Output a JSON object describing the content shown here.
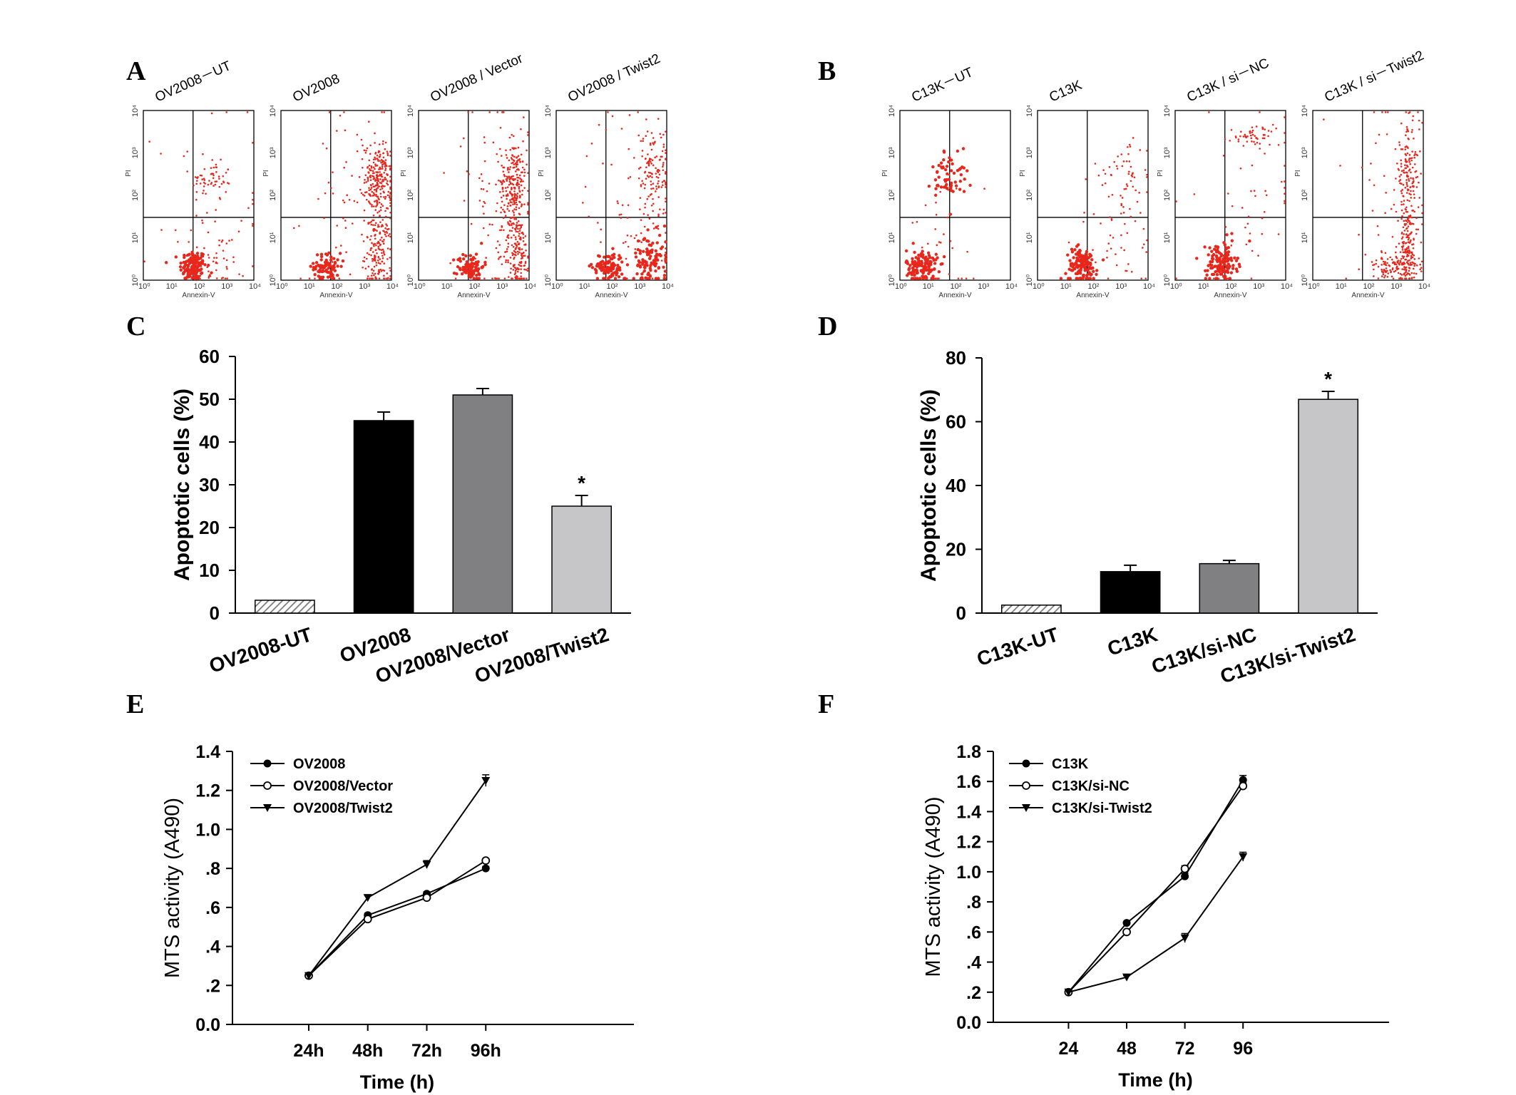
{
  "panel_labels": {
    "A": "A",
    "B": "B",
    "C": "C",
    "D": "D",
    "E": "E",
    "F": "F"
  },
  "colors": {
    "dots": "#e8271c",
    "black_bar": "#000000",
    "dark_gray_bar": "#808083",
    "light_gray_bar": "#c6c6c9",
    "hatch": "#8a8a8a"
  },
  "flow_panels": [
    {
      "group": "A",
      "x_axis_label": "Annexin-V",
      "y_axis_label": "PI",
      "tick_labels": [
        "10⁰",
        "10¹",
        "10²",
        "10³",
        "10⁴"
      ],
      "plots": [
        {
          "title": "OV2008－UT",
          "populations": [
            [
              0.45,
              0.08,
              0.06,
              0.05,
              130
            ],
            [
              0.65,
              0.12,
              0.12,
              0.08,
              40
            ],
            [
              0.62,
              0.59,
              0.09,
              0.05,
              55
            ],
            [
              0.6,
              0.4,
              0.25,
              0.35,
              45
            ]
          ]
        },
        {
          "title": "OV2008",
          "populations": [
            [
              0.42,
              0.08,
              0.06,
              0.04,
              80
            ],
            [
              0.88,
              0.16,
              0.06,
              0.12,
              160
            ],
            [
              0.88,
              0.6,
              0.06,
              0.1,
              220
            ],
            [
              0.7,
              0.45,
              0.25,
              0.3,
              90
            ]
          ]
        },
        {
          "title": "OV2008 / Vector",
          "populations": [
            [
              0.47,
              0.08,
              0.06,
              0.04,
              90
            ],
            [
              0.89,
              0.16,
              0.06,
              0.12,
              170
            ],
            [
              0.86,
              0.58,
              0.06,
              0.12,
              220
            ],
            [
              0.72,
              0.45,
              0.22,
              0.3,
              90
            ]
          ]
        },
        {
          "title": "OV2008 / Twist2",
          "populations": [
            [
              0.47,
              0.08,
              0.07,
              0.04,
              110
            ],
            [
              0.86,
              0.12,
              0.08,
              0.08,
              100
            ],
            [
              0.88,
              0.64,
              0.07,
              0.13,
              120
            ],
            [
              0.72,
              0.45,
              0.22,
              0.3,
              80
            ]
          ]
        }
      ]
    },
    {
      "group": "B",
      "x_axis_label": "Annexin-V",
      "y_axis_label": "PI",
      "tick_labels": [
        "10⁰",
        "10¹",
        "10²",
        "10³",
        "10⁴"
      ],
      "plots": [
        {
          "title": "C13K－UT",
          "populations": [
            [
              0.2,
              0.08,
              0.07,
              0.05,
              140
            ],
            [
              0.45,
              0.62,
              0.08,
              0.08,
              60
            ],
            [
              0.4,
              0.25,
              0.15,
              0.25,
              40
            ]
          ]
        },
        {
          "title": "C13K",
          "populations": [
            [
              0.4,
              0.09,
              0.07,
              0.05,
              130
            ],
            [
              0.75,
              0.3,
              0.2,
              0.2,
              50
            ],
            [
              0.8,
              0.62,
              0.12,
              0.12,
              45
            ]
          ]
        },
        {
          "title": "C13K / si－NC",
          "populations": [
            [
              0.42,
              0.1,
              0.07,
              0.06,
              140
            ],
            [
              0.72,
              0.85,
              0.12,
              0.03,
              50
            ],
            [
              0.65,
              0.4,
              0.22,
              0.3,
              50
            ]
          ]
        },
        {
          "title": "C13K / si－Twist2",
          "populations": [
            [
              0.72,
              0.08,
              0.12,
              0.04,
              100
            ],
            [
              0.86,
              0.16,
              0.05,
              0.12,
              150
            ],
            [
              0.86,
              0.6,
              0.05,
              0.15,
              160
            ],
            [
              0.7,
              0.45,
              0.2,
              0.3,
              50
            ]
          ]
        }
      ]
    }
  ],
  "chart_data": [
    {
      "type": "bar",
      "panel": "C",
      "title": "",
      "ylabel": "Apoptotic cells (%)",
      "ylim": [
        0,
        60
      ],
      "yticks": [
        0,
        10,
        20,
        30,
        40,
        50,
        60
      ],
      "categories": [
        "OV2008-UT",
        "OV2008",
        "OV2008/Vector",
        "OV2008/Twist2"
      ],
      "values": [
        3,
        45,
        51,
        25
      ],
      "errors": [
        0,
        2,
        1.5,
        2.5
      ],
      "fills": [
        "hatch",
        "black",
        "darkgray",
        "lightgray"
      ],
      "annotations": [
        {
          "category": "OV2008/Twist2",
          "text": "*"
        }
      ]
    },
    {
      "type": "bar",
      "panel": "D",
      "title": "",
      "ylabel": "Apoptotic cells (%)",
      "ylim": [
        0,
        80
      ],
      "yticks": [
        0,
        20,
        40,
        60,
        80
      ],
      "categories": [
        "C13K-UT",
        "C13K",
        "C13K/si-NC",
        "C13K/si-Twist2"
      ],
      "values": [
        2.5,
        13,
        15.5,
        67
      ],
      "errors": [
        0,
        2,
        1,
        2.5
      ],
      "fills": [
        "hatch",
        "black",
        "darkgray",
        "lightgray"
      ],
      "annotations": [
        {
          "category": "C13K/si-Twist2",
          "text": "*"
        }
      ]
    },
    {
      "type": "line",
      "panel": "E",
      "title": "",
      "xlabel": "Time (h)",
      "ylabel": "MTS activity (A490)",
      "ylim": [
        0,
        1.4
      ],
      "yticks": [
        "0.0",
        ".2",
        ".4",
        ".6",
        ".8",
        "1.0",
        "1.2",
        "1.4"
      ],
      "categories": [
        "24h",
        "48h",
        "72h",
        "96h"
      ],
      "series": [
        {
          "name": "OV2008",
          "marker": "filled-circle",
          "values": [
            0.25,
            0.56,
            0.67,
            0.8
          ],
          "errors": [
            0,
            0.01,
            0.01,
            0.01
          ]
        },
        {
          "name": "OV2008/Vector",
          "marker": "open-circle",
          "values": [
            0.25,
            0.54,
            0.65,
            0.84
          ],
          "errors": [
            0,
            0.01,
            0.01,
            0.01
          ]
        },
        {
          "name": "OV2008/Twist2",
          "marker": "filled-triangle-down",
          "values": [
            0.25,
            0.65,
            0.82,
            1.25
          ],
          "errors": [
            0,
            0.01,
            0.02,
            0.03
          ]
        }
      ]
    },
    {
      "type": "line",
      "panel": "F",
      "title": "",
      "xlabel": "Time (h)",
      "ylabel": "MTS activity (A490)",
      "ylim": [
        0,
        1.8
      ],
      "yticks": [
        "0.0",
        ".2",
        ".4",
        ".6",
        ".8",
        "1.0",
        "1.2",
        "1.4",
        "1.6",
        "1.8"
      ],
      "categories": [
        "24",
        "48",
        "72",
        "96"
      ],
      "series": [
        {
          "name": "C13K",
          "marker": "filled-circle",
          "values": [
            0.2,
            0.66,
            0.97,
            1.61
          ],
          "errors": [
            0,
            0.01,
            0.02,
            0.03
          ]
        },
        {
          "name": "C13K/si-NC",
          "marker": "open-circle",
          "values": [
            0.2,
            0.6,
            1.02,
            1.57
          ],
          "errors": [
            0,
            0.01,
            0.02,
            0.02
          ]
        },
        {
          "name": "C13K/si-Twist2",
          "marker": "filled-triangle-down",
          "values": [
            0.2,
            0.3,
            0.56,
            1.1
          ],
          "errors": [
            0,
            0.01,
            0.03,
            0.03
          ]
        }
      ]
    }
  ]
}
